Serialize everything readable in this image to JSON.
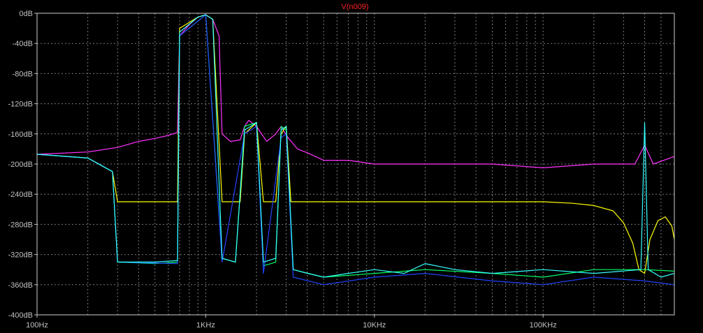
{
  "chart_data": {
    "type": "line",
    "title": "V(n009)",
    "x_scale": "log",
    "xlim": [
      100,
      600000
    ],
    "ylim": [
      -400,
      0
    ],
    "grid": true,
    "x_ticks": [
      {
        "value": 100,
        "label": "100Hz"
      },
      {
        "value": 1000,
        "label": "1KHz"
      },
      {
        "value": 10000,
        "label": "10KHz"
      },
      {
        "value": 100000,
        "label": "100KHz"
      }
    ],
    "y_ticks": [
      {
        "value": 0,
        "label": "0dB"
      },
      {
        "value": -40,
        "label": "-40dB"
      },
      {
        "value": -80,
        "label": "-80dB"
      },
      {
        "value": -120,
        "label": "-120dB"
      },
      {
        "value": -160,
        "label": "-160dB"
      },
      {
        "value": -200,
        "label": "-200dB"
      },
      {
        "value": -240,
        "label": "-240dB"
      },
      {
        "value": -280,
        "label": "-280dB"
      },
      {
        "value": -320,
        "label": "-320dB"
      },
      {
        "value": -360,
        "label": "-360dB"
      },
      {
        "value": -400,
        "label": "-400dB"
      }
    ],
    "series": [
      {
        "color": "#ff33ff",
        "points": [
          [
            100,
            -187
          ],
          [
            200,
            -184
          ],
          [
            300,
            -178
          ],
          [
            400,
            -170
          ],
          [
            500,
            -166
          ],
          [
            600,
            -162
          ],
          [
            680,
            -158
          ],
          [
            700,
            -30
          ],
          [
            800,
            -15
          ],
          [
            900,
            -5
          ],
          [
            1000,
            -2
          ],
          [
            1100,
            -8
          ],
          [
            1200,
            -30
          ],
          [
            1250,
            -160
          ],
          [
            1400,
            -170
          ],
          [
            1600,
            -168
          ],
          [
            1700,
            -150
          ],
          [
            1800,
            -142
          ],
          [
            2000,
            -150
          ],
          [
            2300,
            -170
          ],
          [
            2600,
            -160
          ],
          [
            2800,
            -150
          ],
          [
            3000,
            -162
          ],
          [
            3500,
            -180
          ],
          [
            4000,
            -185
          ],
          [
            5000,
            -195
          ],
          [
            7000,
            -195
          ],
          [
            10000,
            -200
          ],
          [
            20000,
            -200
          ],
          [
            50000,
            -200
          ],
          [
            100000,
            -205
          ],
          [
            200000,
            -200
          ],
          [
            350000,
            -200
          ],
          [
            400000,
            -175
          ],
          [
            450000,
            -200
          ],
          [
            600000,
            -190
          ]
        ]
      },
      {
        "color": "#ffff00",
        "points": [
          [
            100,
            -187
          ],
          [
            200,
            -192
          ],
          [
            280,
            -210
          ],
          [
            300,
            -250
          ],
          [
            680,
            -250
          ],
          [
            700,
            -20
          ],
          [
            900,
            -5
          ],
          [
            1000,
            -2
          ],
          [
            1100,
            -8
          ],
          [
            1250,
            -250
          ],
          [
            1600,
            -250
          ],
          [
            1700,
            -160
          ],
          [
            2000,
            -145
          ],
          [
            2200,
            -250
          ],
          [
            2600,
            -250
          ],
          [
            2800,
            -160
          ],
          [
            3000,
            -150
          ],
          [
            3200,
            -250
          ],
          [
            10000,
            -250
          ],
          [
            50000,
            -250
          ],
          [
            100000,
            -250
          ],
          [
            150000,
            -252
          ],
          [
            200000,
            -255
          ],
          [
            260000,
            -262
          ],
          [
            300000,
            -278
          ],
          [
            340000,
            -305
          ],
          [
            370000,
            -340
          ],
          [
            400000,
            -345
          ],
          [
            430000,
            -300
          ],
          [
            480000,
            -275
          ],
          [
            530000,
            -270
          ],
          [
            580000,
            -282
          ],
          [
            600000,
            -300
          ]
        ]
      },
      {
        "color": "#00ff66",
        "points": [
          [
            100,
            -187
          ],
          [
            200,
            -192
          ],
          [
            280,
            -210
          ],
          [
            300,
            -330
          ],
          [
            500,
            -332
          ],
          [
            680,
            -330
          ],
          [
            700,
            -30
          ],
          [
            1000,
            -2
          ],
          [
            1250,
            -325
          ],
          [
            1500,
            -330
          ],
          [
            1700,
            -150
          ],
          [
            2000,
            -145
          ],
          [
            2200,
            -335
          ],
          [
            2600,
            -330
          ],
          [
            2800,
            -150
          ],
          [
            3000,
            -155
          ],
          [
            3300,
            -340
          ],
          [
            5000,
            -350
          ],
          [
            10000,
            -345
          ],
          [
            20000,
            -340
          ],
          [
            50000,
            -345
          ],
          [
            100000,
            -350
          ],
          [
            200000,
            -340
          ],
          [
            400000,
            -340
          ],
          [
            600000,
            -342
          ]
        ]
      },
      {
        "color": "#2244ff",
        "points": [
          [
            100,
            -187
          ],
          [
            200,
            -192
          ],
          [
            280,
            -210
          ],
          [
            300,
            -330
          ],
          [
            680,
            -332
          ],
          [
            700,
            -30
          ],
          [
            1000,
            -2
          ],
          [
            1250,
            -330
          ],
          [
            1700,
            -160
          ],
          [
            2000,
            -150
          ],
          [
            2200,
            -345
          ],
          [
            2800,
            -165
          ],
          [
            3000,
            -160
          ],
          [
            3300,
            -350
          ],
          [
            5000,
            -360
          ],
          [
            10000,
            -350
          ],
          [
            20000,
            -345
          ],
          [
            50000,
            -355
          ],
          [
            100000,
            -360
          ],
          [
            200000,
            -350
          ],
          [
            400000,
            -355
          ],
          [
            600000,
            -360
          ]
        ]
      },
      {
        "color": "#33ffff",
        "points": [
          [
            100,
            -187
          ],
          [
            200,
            -192
          ],
          [
            280,
            -210
          ],
          [
            300,
            -330
          ],
          [
            500,
            -330
          ],
          [
            680,
            -328
          ],
          [
            700,
            -25
          ],
          [
            900,
            -5
          ],
          [
            1000,
            -2
          ],
          [
            1100,
            -8
          ],
          [
            1250,
            -325
          ],
          [
            1500,
            -330
          ],
          [
            1700,
            -155
          ],
          [
            2000,
            -145
          ],
          [
            2200,
            -330
          ],
          [
            2600,
            -325
          ],
          [
            2800,
            -155
          ],
          [
            3000,
            -150
          ],
          [
            3300,
            -340
          ],
          [
            4000,
            -345
          ],
          [
            5000,
            -350
          ],
          [
            7000,
            -345
          ],
          [
            10000,
            -340
          ],
          [
            15000,
            -345
          ],
          [
            20000,
            -332
          ],
          [
            30000,
            -340
          ],
          [
            50000,
            -345
          ],
          [
            100000,
            -340
          ],
          [
            200000,
            -345
          ],
          [
            380000,
            -340
          ],
          [
            400000,
            -145
          ],
          [
            420000,
            -340
          ],
          [
            500000,
            -350
          ],
          [
            600000,
            -345
          ]
        ]
      }
    ]
  }
}
